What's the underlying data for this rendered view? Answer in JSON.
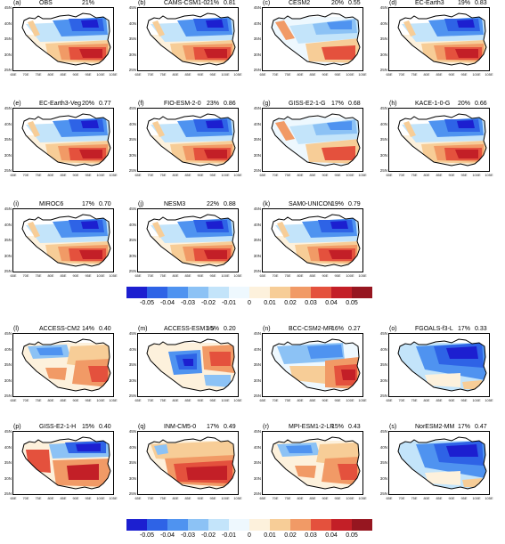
{
  "ylabels": [
    "45N",
    "40N",
    "35N",
    "30N",
    "25N"
  ],
  "xlabels": [
    "65E",
    "70E",
    "75E",
    "80E",
    "85E",
    "90E",
    "95E",
    "100E",
    "105E"
  ],
  "colorbar": {
    "colors": [
      "#1c1fd0",
      "#2e63e6",
      "#4f93f0",
      "#8cc2f5",
      "#c3e4fa",
      "#eef8fe",
      "#fdf1dc",
      "#f7cd97",
      "#f19a66",
      "#e4513d",
      "#c31f27",
      "#961620"
    ],
    "labels_top": [
      "-0.05",
      "-0.04",
      "-0.03",
      "-0.02",
      "-0.01",
      "0",
      "0.01",
      "0.02",
      "0.03",
      "0.04",
      "0.05"
    ],
    "labels_bottom": [
      "-0.05",
      "-0.04",
      "-0.03",
      "-0.02",
      "-0.01",
      "0",
      "0.01",
      "0.02",
      "0.03",
      "0.04",
      "0.05"
    ]
  },
  "panels": [
    {
      "label": "(a)",
      "name": "OBS",
      "pct": "21%",
      "r": "",
      "pattern": "A"
    },
    {
      "label": "(b)",
      "name": "CAMS-CSM1-0",
      "pct": "21%",
      "r": "0.81",
      "pattern": "A"
    },
    {
      "label": "(c)",
      "name": "CESM2",
      "pct": "20%",
      "r": "0.55",
      "pattern": "C"
    },
    {
      "label": "(d)",
      "name": "EC-Earth3",
      "pct": "19%",
      "r": "0.83",
      "pattern": "A"
    },
    {
      "label": "(e)",
      "name": "EC-Earth3-Veg",
      "pct": "20%",
      "r": "0.77",
      "pattern": "A"
    },
    {
      "label": "(f)",
      "name": "FIO-ESM-2-0",
      "pct": "23%",
      "r": "0.86",
      "pattern": "A"
    },
    {
      "label": "(g)",
      "name": "GISS-E2-1-G",
      "pct": "17%",
      "r": "0.68",
      "pattern": "C"
    },
    {
      "label": "(h)",
      "name": "KACE-1-0-G",
      "pct": "20%",
      "r": "0.66",
      "pattern": "A"
    },
    {
      "label": "(i)",
      "name": "MIROC6",
      "pct": "17%",
      "r": "0.70",
      "pattern": "A"
    },
    {
      "label": "(j)",
      "name": "NESM3",
      "pct": "22%",
      "r": "0.88",
      "pattern": "A"
    },
    {
      "label": "(k)",
      "name": "SAM0-UNICON",
      "pct": "19%",
      "r": "0.79",
      "pattern": "A"
    },
    {
      "label": "(l)",
      "name": "ACCESS-CM2",
      "pct": "14%",
      "r": "0.40",
      "pattern": "B"
    },
    {
      "label": "(m)",
      "name": "ACCESS-ESM1-5",
      "pct": "15%",
      "r": "0.20",
      "pattern": "D"
    },
    {
      "label": "(n)",
      "name": "BCC-CSM2-MR",
      "pct": "16%",
      "r": "0.27",
      "pattern": "E"
    },
    {
      "label": "(o)",
      "name": "FGOALS-f3-L",
      "pct": "17%",
      "r": "0.33",
      "pattern": "F"
    },
    {
      "label": "(p)",
      "name": "GISS-E2-1-H",
      "pct": "15%",
      "r": "0.40",
      "pattern": "G"
    },
    {
      "label": "(q)",
      "name": "INM-CM5-0",
      "pct": "17%",
      "r": "0.49",
      "pattern": "H"
    },
    {
      "label": "(r)",
      "name": "MPI-ESM1-2-LR",
      "pct": "15%",
      "r": "0.43",
      "pattern": "B"
    },
    {
      "label": "(s)",
      "name": "NorESM2-MM",
      "pct": "17%",
      "r": "0.47",
      "pattern": "F"
    }
  ]
}
